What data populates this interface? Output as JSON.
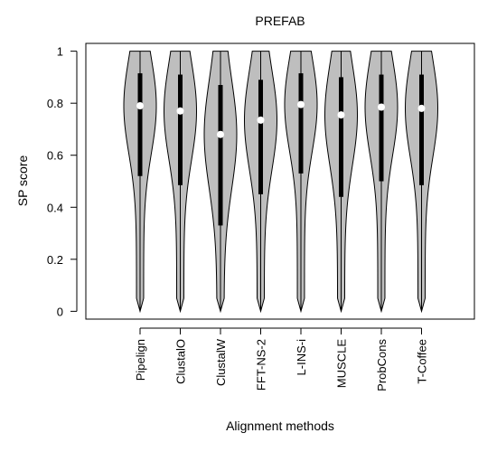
{
  "chart_data": {
    "type": "violin",
    "title": "PREFAB",
    "xlabel": "Alignment methods",
    "ylabel": "SP score",
    "ylim": [
      -0.03,
      1.03
    ],
    "yticks": [
      0,
      0.2,
      0.4,
      0.6,
      0.8,
      1
    ],
    "ytick_labels": [
      "0",
      "0.2",
      "0.4",
      "0.6",
      "0.8",
      "1"
    ],
    "categories": [
      "Pipelign",
      "ClustalO",
      "ClustalW",
      "FFT-NS-2",
      "L-INS-i",
      "MUSCLE",
      "ProbCons",
      "T-Coffee"
    ],
    "medians": [
      0.79,
      0.77,
      0.68,
      0.735,
      0.795,
      0.755,
      0.785,
      0.78
    ],
    "q1": [
      0.52,
      0.485,
      0.33,
      0.45,
      0.53,
      0.44,
      0.5,
      0.485
    ],
    "q3": [
      0.915,
      0.91,
      0.87,
      0.89,
      0.915,
      0.9,
      0.91,
      0.91
    ],
    "min": [
      0,
      0,
      0,
      0,
      0,
      0,
      0,
      0
    ],
    "max": [
      1,
      1,
      1,
      1,
      1,
      1,
      1,
      1
    ],
    "colors": {
      "violin_fill": "#bebebe",
      "outline": "#000000",
      "median": "#ffffff"
    }
  }
}
